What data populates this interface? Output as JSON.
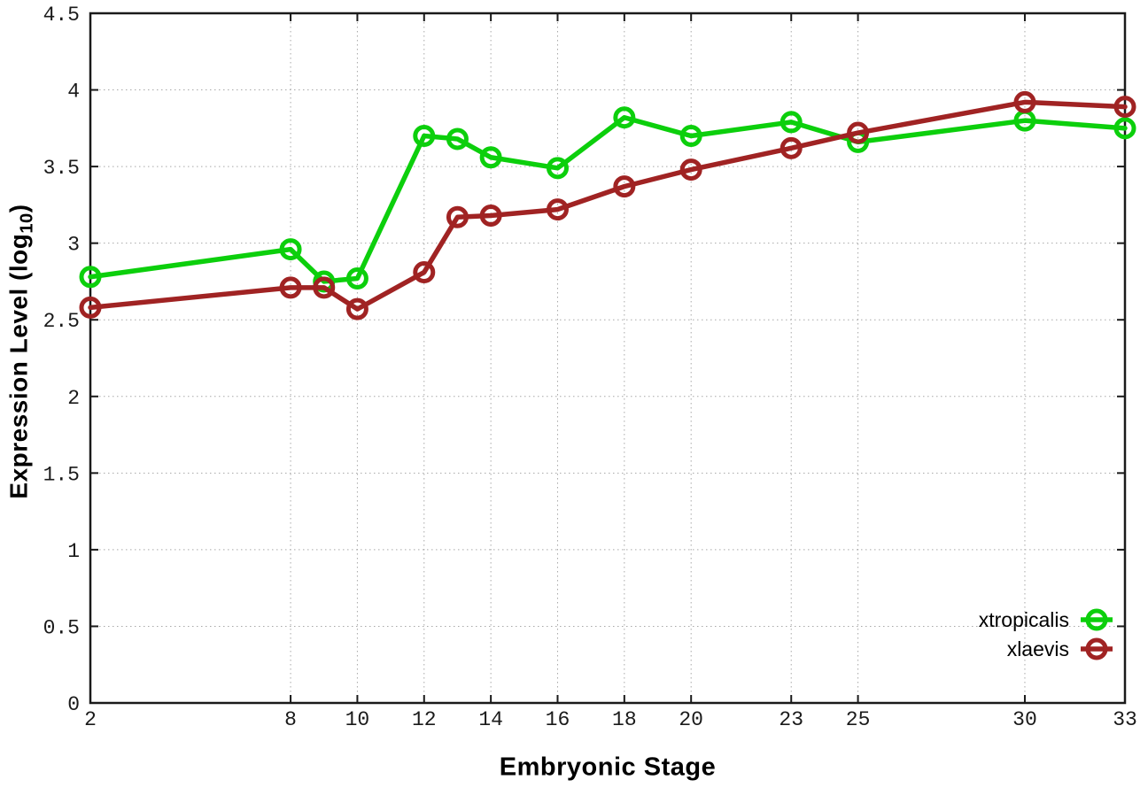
{
  "chart_data": {
    "type": "line",
    "title": "",
    "xlabel": "Embryonic Stage",
    "ylabel_prefix": "Expression Level (log",
    "ylabel_sub": "10",
    "ylabel_suffix": ")",
    "xlim": [
      2,
      33
    ],
    "ylim": [
      0,
      4.5
    ],
    "x_ticks": [
      2,
      8,
      10,
      12,
      14,
      16,
      18,
      20,
      23,
      25,
      30,
      33
    ],
    "y_ticks": [
      0,
      0.5,
      1,
      1.5,
      2,
      2.5,
      3,
      3.5,
      4,
      4.5
    ],
    "grid": true,
    "legend_position": "bottom-right",
    "x": [
      2,
      8,
      9,
      10,
      12,
      13,
      14,
      16,
      18,
      20,
      23,
      25,
      30,
      33
    ],
    "series": [
      {
        "name": "xtropicalis",
        "color": "#0ccf0c",
        "values": [
          2.78,
          2.96,
          2.75,
          2.77,
          3.7,
          3.68,
          3.56,
          3.49,
          3.82,
          3.7,
          3.79,
          3.66,
          3.8,
          3.75
        ]
      },
      {
        "name": "xlaevis",
        "color": "#a02323",
        "values": [
          2.58,
          2.71,
          2.71,
          2.57,
          2.81,
          3.17,
          3.18,
          3.22,
          3.37,
          3.48,
          3.62,
          3.72,
          3.92,
          3.89
        ]
      }
    ],
    "style": {
      "axis_color": "#1a1a1a",
      "grid_color": "#a8a8a8",
      "background": "#ffffff",
      "line_width": 5.5,
      "marker_radius": 10,
      "marker_stroke": 5
    }
  }
}
